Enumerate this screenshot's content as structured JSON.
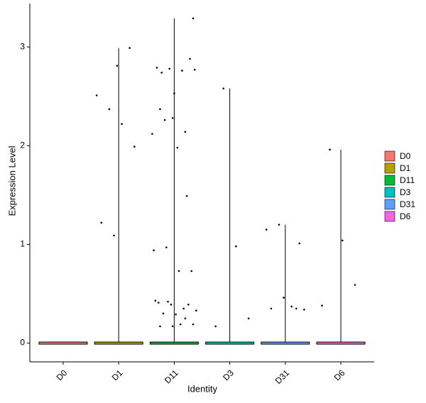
{
  "chart_data": {
    "type": "violin",
    "xlabel": "Identity",
    "ylabel": "Expression Level",
    "categories": [
      "D0",
      "D1",
      "D11",
      "D3",
      "D31",
      "D6"
    ],
    "ylim": [
      -0.19,
      3.44
    ],
    "yticks": [
      0,
      1,
      2,
      3
    ],
    "series": [
      {
        "name": "D0",
        "color": "#F8766D",
        "values": []
      },
      {
        "name": "D1",
        "color": "#B79F00",
        "values": [
          2.81,
          2.99,
          2.51,
          2.37,
          2.22,
          1.99,
          1.22,
          1.09
        ]
      },
      {
        "name": "D11",
        "color": "#00BA38",
        "values": [
          3.29,
          2.37,
          2.28,
          2.14,
          2.12,
          2.26,
          1.98,
          2.88,
          2.79,
          2.78,
          2.76,
          2.77,
          2.74,
          2.53,
          1.49,
          0.94,
          0.97,
          0.73,
          0.73,
          0.41,
          0.39,
          0.35,
          0.33,
          0.3,
          0.29,
          0.39,
          0.43,
          0.42,
          0.19,
          0.19,
          0.17,
          0.17,
          0.25
        ]
      },
      {
        "name": "D3",
        "color": "#00BFC4",
        "values": [
          2.58,
          0.98,
          0.25,
          0.17
        ]
      },
      {
        "name": "D31",
        "color": "#619CFF",
        "values": [
          1.01,
          1.15,
          1.2,
          0.37,
          0.34,
          0.35,
          0.46,
          0.35
        ]
      },
      {
        "name": "D6",
        "color": "#F564E3",
        "values": [
          1.96,
          1.04,
          0.59,
          0.38
        ]
      }
    ]
  }
}
